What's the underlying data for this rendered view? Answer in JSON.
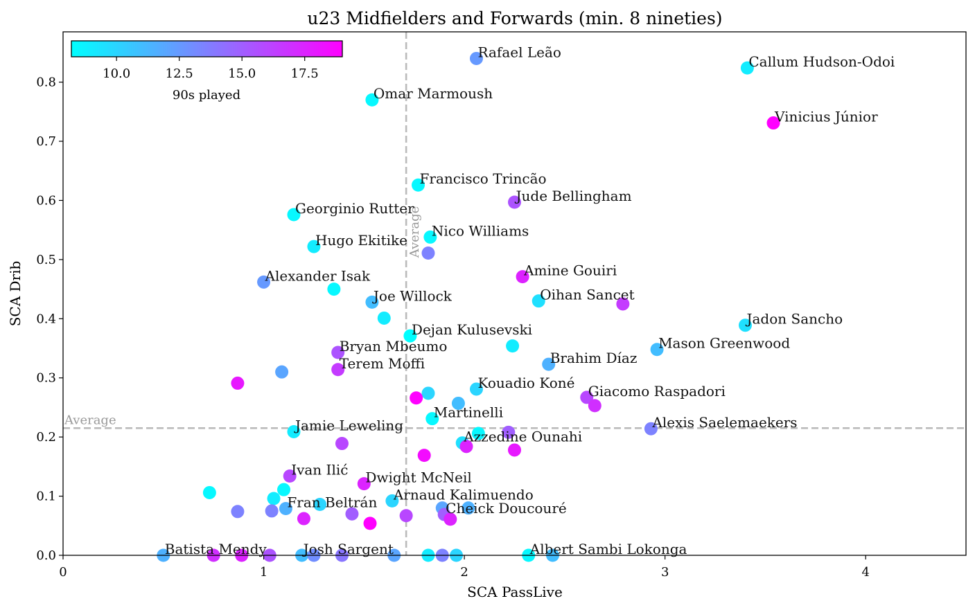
{
  "chart_data": {
    "type": "scatter",
    "title": "u23 Midfielders and Forwards (min. 8 nineties)",
    "xlabel": "SCA PassLive",
    "ylabel": "SCA Drib",
    "xlim": [
      0,
      4.5
    ],
    "ylim": [
      0,
      0.885
    ],
    "xticks": [
      "0",
      "1",
      "2",
      "3",
      "4"
    ],
    "xtick_values": [
      0,
      1,
      2,
      3,
      4
    ],
    "yticks": [
      "0.0",
      "0.1",
      "0.2",
      "0.3",
      "0.4",
      "0.5",
      "0.6",
      "0.7",
      "0.8"
    ],
    "ytick_values": [
      0.0,
      0.1,
      0.2,
      0.3,
      0.4,
      0.5,
      0.6,
      0.7,
      0.8
    ],
    "grid": false,
    "average_lines": {
      "x": 1.71,
      "y": 0.215,
      "label": "Average",
      "color": "#bbbbbb"
    },
    "colorbar": {
      "label": "90s played",
      "range": [
        8.2,
        19.0
      ],
      "ticks": [
        "10.0",
        "12.5",
        "15.0",
        "17.5"
      ],
      "tick_values": [
        10.0,
        12.5,
        15.0,
        17.5
      ],
      "colormap": "cool",
      "color_low": "#00ffff",
      "color_high": "#ff00ff",
      "placement": "upper-left"
    },
    "points": [
      {
        "name": "Rafael Leão",
        "x": 2.06,
        "y": 0.84,
        "c": 12.5
      },
      {
        "name": "Callum Hudson-Odoi",
        "x": 3.41,
        "y": 0.824,
        "c": 9.0
      },
      {
        "name": "Omar Marmoush",
        "x": 1.54,
        "y": 0.77,
        "c": 8.5
      },
      {
        "name": "Vinicius Júnior",
        "x": 3.54,
        "y": 0.731,
        "c": 19.0
      },
      {
        "name": "Francisco Trincão",
        "x": 1.77,
        "y": 0.626,
        "c": 8.5
      },
      {
        "name": "Jude Bellingham",
        "x": 2.25,
        "y": 0.597,
        "c": 15.5
      },
      {
        "name": "Georginio Rutter",
        "x": 1.15,
        "y": 0.576,
        "c": 8.5
      },
      {
        "name": "Nico Williams",
        "x": 1.83,
        "y": 0.538,
        "c": 8.5
      },
      {
        "name": "",
        "x": 1.82,
        "y": 0.511,
        "c": 13.5
      },
      {
        "name": "Hugo Ekitike",
        "x": 1.25,
        "y": 0.522,
        "c": 9.0
      },
      {
        "name": "Amine Gouiri",
        "x": 2.29,
        "y": 0.471,
        "c": 17.5
      },
      {
        "name": "Alexander Isak",
        "x": 1.0,
        "y": 0.462,
        "c": 12.5
      },
      {
        "name": "",
        "x": 1.35,
        "y": 0.45,
        "c": 8.5
      },
      {
        "name": "Oihan Sancet",
        "x": 2.37,
        "y": 0.43,
        "c": 9.5
      },
      {
        "name": "",
        "x": 2.79,
        "y": 0.425,
        "c": 16.5
      },
      {
        "name": "Joe Willock",
        "x": 1.54,
        "y": 0.428,
        "c": 11.0
      },
      {
        "name": "",
        "x": 1.6,
        "y": 0.401,
        "c": 9.0
      },
      {
        "name": "Jadon Sancho",
        "x": 3.4,
        "y": 0.389,
        "c": 9.5
      },
      {
        "name": "Dejan Kulusevski",
        "x": 1.73,
        "y": 0.371,
        "c": 8.2
      },
      {
        "name": "",
        "x": 2.24,
        "y": 0.354,
        "c": 9.0
      },
      {
        "name": "Mason Greenwood",
        "x": 2.96,
        "y": 0.348,
        "c": 11.0
      },
      {
        "name": "Bryan Mbeumo",
        "x": 1.37,
        "y": 0.343,
        "c": 15.5
      },
      {
        "name": "Brahim Díaz",
        "x": 2.42,
        "y": 0.323,
        "c": 11.5
      },
      {
        "name": "Terem Moffi",
        "x": 1.37,
        "y": 0.314,
        "c": 16.5
      },
      {
        "name": "",
        "x": 1.09,
        "y": 0.31,
        "c": 12.0
      },
      {
        "name": "",
        "x": 0.87,
        "y": 0.291,
        "c": 18.0
      },
      {
        "name": "Kouadio Koné",
        "x": 2.06,
        "y": 0.281,
        "c": 10.0
      },
      {
        "name": "",
        "x": 1.82,
        "y": 0.274,
        "c": 10.0
      },
      {
        "name": "",
        "x": 1.76,
        "y": 0.266,
        "c": 19.0
      },
      {
        "name": "Giacomo Raspadori",
        "x": 2.61,
        "y": 0.267,
        "c": 16.0
      },
      {
        "name": "",
        "x": 2.65,
        "y": 0.253,
        "c": 17.0
      },
      {
        "name": "",
        "x": 1.97,
        "y": 0.257,
        "c": 11.0
      },
      {
        "name": "Martinelli",
        "x": 1.84,
        "y": 0.231,
        "c": 8.5
      },
      {
        "name": "Alexis Saelemaekers",
        "x": 2.93,
        "y": 0.214,
        "c": 13.5
      },
      {
        "name": "Jamie Leweling",
        "x": 1.15,
        "y": 0.209,
        "c": 9.0
      },
      {
        "name": "",
        "x": 2.22,
        "y": 0.208,
        "c": 15.0
      },
      {
        "name": "",
        "x": 2.07,
        "y": 0.206,
        "c": 8.5
      },
      {
        "name": "Azzedine Ounahi",
        "x": 1.99,
        "y": 0.19,
        "c": 9.5
      },
      {
        "name": "",
        "x": 1.39,
        "y": 0.189,
        "c": 16.0
      },
      {
        "name": "",
        "x": 2.01,
        "y": 0.184,
        "c": 17.5
      },
      {
        "name": "",
        "x": 2.25,
        "y": 0.178,
        "c": 18.0
      },
      {
        "name": "",
        "x": 1.8,
        "y": 0.169,
        "c": 18.5
      },
      {
        "name": "Ivan Ilić",
        "x": 1.13,
        "y": 0.134,
        "c": 16.0
      },
      {
        "name": "Dwight McNeil",
        "x": 1.5,
        "y": 0.121,
        "c": 17.5
      },
      {
        "name": "",
        "x": 1.1,
        "y": 0.111,
        "c": 8.5
      },
      {
        "name": "",
        "x": 0.73,
        "y": 0.106,
        "c": 8.5
      },
      {
        "name": "",
        "x": 1.05,
        "y": 0.096,
        "c": 9.0
      },
      {
        "name": "Arnaud Kalimuendo",
        "x": 1.64,
        "y": 0.092,
        "c": 10.0
      },
      {
        "name": "",
        "x": 1.28,
        "y": 0.086,
        "c": 10.0
      },
      {
        "name": "",
        "x": 1.89,
        "y": 0.08,
        "c": 12.0
      },
      {
        "name": "",
        "x": 2.02,
        "y": 0.08,
        "c": 11.5
      },
      {
        "name": "Fran Beltrán",
        "x": 1.11,
        "y": 0.079,
        "c": 11.5
      },
      {
        "name": "",
        "x": 0.87,
        "y": 0.074,
        "c": 13.5
      },
      {
        "name": "",
        "x": 1.04,
        "y": 0.075,
        "c": 13.5
      },
      {
        "name": "",
        "x": 1.44,
        "y": 0.07,
        "c": 15.0
      },
      {
        "name": "Cheick Doucouré",
        "x": 1.9,
        "y": 0.069,
        "c": 15.0
      },
      {
        "name": "",
        "x": 1.71,
        "y": 0.067,
        "c": 16.0
      },
      {
        "name": "",
        "x": 1.93,
        "y": 0.061,
        "c": 17.5
      },
      {
        "name": "",
        "x": 1.2,
        "y": 0.062,
        "c": 17.5
      },
      {
        "name": "",
        "x": 1.53,
        "y": 0.054,
        "c": 19.0
      },
      {
        "name": "Batista Mendy",
        "x": 0.5,
        "y": 0.0,
        "c": 11.5
      },
      {
        "name": "",
        "x": 0.75,
        "y": 0.0,
        "c": 17.0
      },
      {
        "name": "",
        "x": 0.89,
        "y": 0.0,
        "c": 17.5
      },
      {
        "name": "",
        "x": 1.03,
        "y": 0.0,
        "c": 15.5
      },
      {
        "name": "Josh Sargent",
        "x": 1.19,
        "y": 0.0,
        "c": 11.0
      },
      {
        "name": "",
        "x": 1.25,
        "y": 0.0,
        "c": 13.0
      },
      {
        "name": "",
        "x": 1.39,
        "y": 0.0,
        "c": 14.0
      },
      {
        "name": "",
        "x": 1.65,
        "y": 0.0,
        "c": 12.0
      },
      {
        "name": "",
        "x": 1.82,
        "y": 0.0,
        "c": 9.0
      },
      {
        "name": "",
        "x": 1.89,
        "y": 0.0,
        "c": 13.5
      },
      {
        "name": "",
        "x": 1.96,
        "y": 0.0,
        "c": 10.0
      },
      {
        "name": "Albert Sambi Lokonga",
        "x": 2.32,
        "y": 0.0,
        "c": 8.5
      },
      {
        "name": "",
        "x": 2.44,
        "y": 0.0,
        "c": 11.0
      }
    ]
  }
}
